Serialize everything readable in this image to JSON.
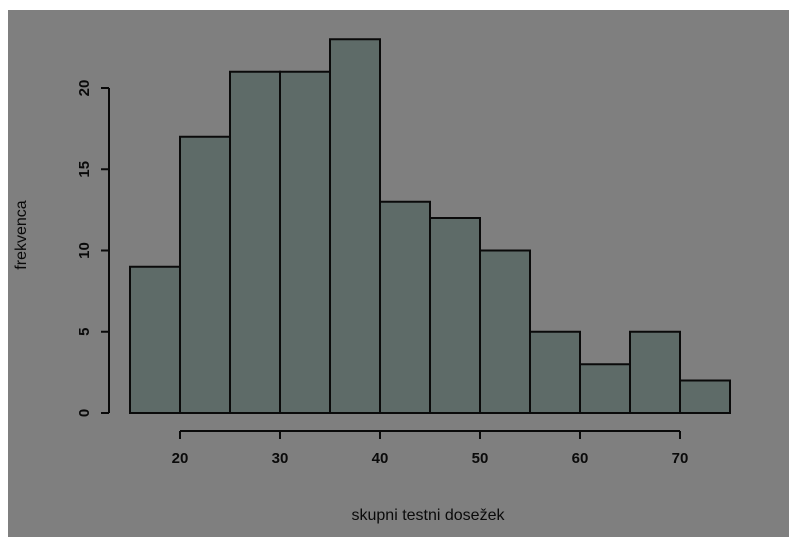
{
  "chart_data": {
    "type": "histogram",
    "title": "",
    "xlabel": "skupni testni dosežek",
    "ylabel": "frekvenca",
    "bins": [
      {
        "start": 15,
        "end": 20,
        "count": 9
      },
      {
        "start": 20,
        "end": 25,
        "count": 17
      },
      {
        "start": 25,
        "end": 30,
        "count": 21
      },
      {
        "start": 30,
        "end": 35,
        "count": 21
      },
      {
        "start": 35,
        "end": 40,
        "count": 23
      },
      {
        "start": 40,
        "end": 45,
        "count": 13
      },
      {
        "start": 45,
        "end": 50,
        "count": 12
      },
      {
        "start": 50,
        "end": 55,
        "count": 10
      },
      {
        "start": 55,
        "end": 60,
        "count": 5
      },
      {
        "start": 60,
        "end": 65,
        "count": 3
      },
      {
        "start": 65,
        "end": 70,
        "count": 5
      },
      {
        "start": 70,
        "end": 75,
        "count": 2
      }
    ],
    "x_ticks": [
      20,
      30,
      40,
      50,
      60,
      70
    ],
    "y_ticks": [
      0,
      5,
      10,
      15,
      20
    ],
    "xlim": [
      15,
      75
    ],
    "ylim": [
      0,
      23
    ],
    "grid": false,
    "legend": "none",
    "colors": {
      "background": "#7f7f7f",
      "bar_fill": "#5e6b68",
      "bar_stroke": "#0a0a0a",
      "axis": "#0a0a0a"
    }
  }
}
